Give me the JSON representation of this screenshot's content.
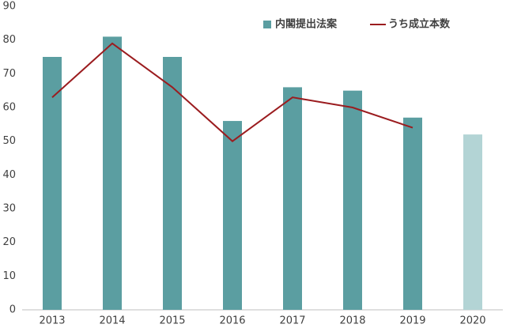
{
  "chart_data": {
    "type": "bar",
    "categories": [
      "2013",
      "2014",
      "2015",
      "2016",
      "2017",
      "2018",
      "2019",
      "2020"
    ],
    "series": [
      {
        "name": "内閣提出法案",
        "type": "bar",
        "color": "#5b9ea1",
        "colors": [
          "#5b9ea1",
          "#5b9ea1",
          "#5b9ea1",
          "#5b9ea1",
          "#5b9ea1",
          "#5b9ea1",
          "#5b9ea1",
          "#b3d4d5"
        ],
        "values": [
          75,
          81,
          75,
          56,
          66,
          65,
          57,
          52
        ]
      },
      {
        "name": "うち成立本数",
        "type": "line",
        "color": "#9b1c1f",
        "values": [
          63,
          79,
          66,
          50,
          63,
          60,
          54,
          null
        ]
      }
    ],
    "ylim": [
      0,
      90
    ],
    "yticks": [
      0,
      10,
      20,
      30,
      40,
      50,
      60,
      70,
      80,
      90
    ],
    "grid": false,
    "legend": "top"
  }
}
